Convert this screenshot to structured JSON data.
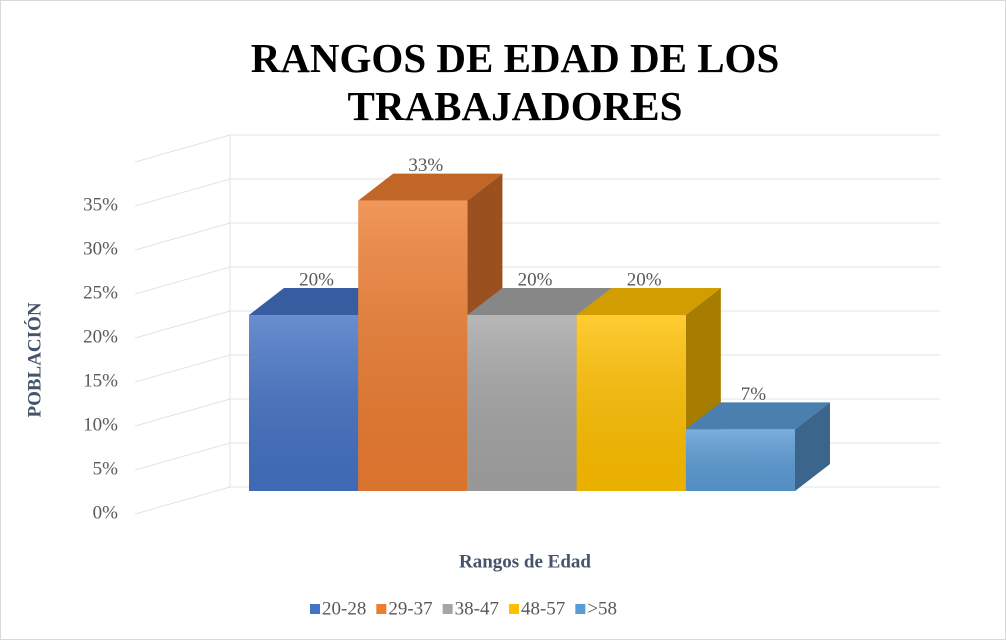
{
  "chart_data": {
    "type": "bar3d",
    "title": "RANGOS DE EDAD DE LOS TRABAJADORES",
    "categories": [
      "20-28",
      "29-37",
      "38-47",
      "48-57",
      ">58"
    ],
    "values": [
      20,
      33,
      20,
      20,
      7
    ],
    "value_labels": [
      "20%",
      "33%",
      "20%",
      "20%",
      "7%"
    ],
    "colors": [
      "#4472c4",
      "#ed7d31",
      "#a5a5a5",
      "#ffc000",
      "#5b9bd5"
    ],
    "ylim": [
      0,
      40
    ],
    "yticks": [
      {
        "value": 0,
        "label": "0%"
      },
      {
        "value": 5,
        "label": "5%"
      },
      {
        "value": 10,
        "label": "10%"
      },
      {
        "value": 15,
        "label": "15%"
      },
      {
        "value": 20,
        "label": "20%"
      },
      {
        "value": 25,
        "label": "25%"
      },
      {
        "value": 30,
        "label": "30%"
      },
      {
        "value": 35,
        "label": "35%"
      }
    ],
    "ylabel": "POBLACIÓN",
    "xlabel": "Rangos de Edad",
    "grid": true,
    "legend": "bottom"
  }
}
